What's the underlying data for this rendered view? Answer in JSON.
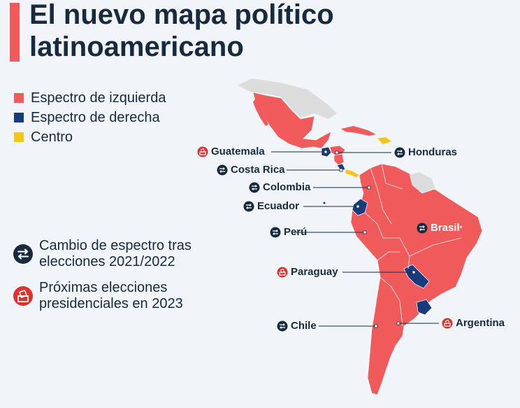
{
  "title": "El nuevo mapa político latinoamericano",
  "colors": {
    "left": "#f05a5b",
    "right": "#183b7d",
    "center": "#f5c518",
    "other": "#dcdcdc",
    "change_icon": "#172a40",
    "election_icon": "#e0302e"
  },
  "legend": [
    {
      "label": "Espectro de izquierda",
      "color": "#f05a5b"
    },
    {
      "label": "Espectro de derecha",
      "color": "#183b7d"
    },
    {
      "label": "Centro",
      "color": "#f5c518"
    }
  ],
  "symbols": {
    "change": {
      "icon": "swap-arrows-icon",
      "label": "Cambio de espectro tras elecciones 2021/2022"
    },
    "election": {
      "icon": "ballot-box-icon",
      "label": "Próximas elecciones presidenciales en 2023"
    }
  },
  "countries": [
    {
      "name": "Guatemala",
      "marker": "election"
    },
    {
      "name": "Honduras",
      "marker": "change"
    },
    {
      "name": "Costa Rica",
      "marker": "change"
    },
    {
      "name": "Colombia",
      "marker": "change"
    },
    {
      "name": "Ecuador",
      "marker": "change"
    },
    {
      "name": "Perú",
      "marker": "change"
    },
    {
      "name": "Brasil",
      "marker": "change",
      "note": "*"
    },
    {
      "name": "Paraguay",
      "marker": "election"
    },
    {
      "name": "Argentina",
      "marker": "election"
    },
    {
      "name": "Chile",
      "marker": "change"
    }
  ]
}
